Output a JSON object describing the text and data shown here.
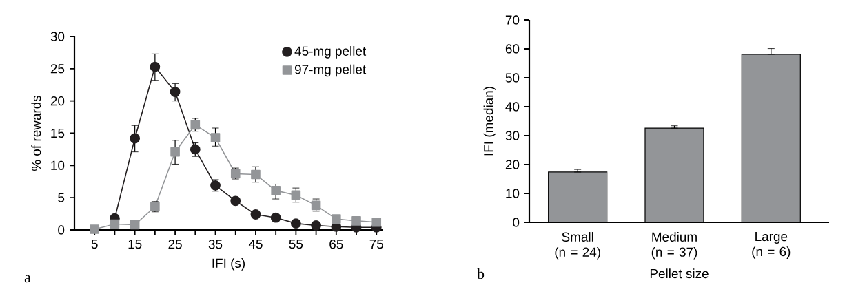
{
  "chart_data": [
    {
      "type": "line",
      "xlabel": "IFI (s)",
      "ylabel": "% of rewards",
      "annotations": [
        "a"
      ],
      "legend": "top right",
      "x": [
        5,
        10,
        15,
        20,
        25,
        30,
        35,
        40,
        45,
        50,
        55,
        60,
        65,
        70,
        75
      ],
      "xlim": [
        0,
        76.5
      ],
      "xticks": [
        5,
        {
          "value": 10,
          "label": null
        },
        15,
        {
          "value": 20,
          "label": null
        },
        25,
        {
          "value": 30,
          "label": null
        },
        35,
        {
          "value": 40,
          "label": null
        },
        45,
        {
          "value": 50,
          "label": null
        },
        55,
        {
          "value": 60,
          "label": null
        },
        65,
        {
          "value": 70,
          "label": null
        },
        75
      ],
      "ylim": [
        0,
        30
      ],
      "yticks": [
        0,
        5,
        10,
        15,
        20,
        25,
        30
      ],
      "series": [
        {
          "name": "45-mg pellet",
          "color": "#231f20",
          "marker": "circle",
          "values": [
            null,
            1.8,
            14.2,
            25.3,
            21.4,
            12.5,
            6.9,
            4.5,
            2.4,
            1.9,
            1.0,
            0.7,
            0.5,
            0.4,
            0.4
          ],
          "errors": [
            null,
            null,
            [
              12.1,
              16.2
            ],
            [
              23.2,
              27.3
            ],
            [
              20.0,
              22.7
            ],
            [
              11.4,
              13.5
            ],
            [
              6.0,
              7.8
            ],
            null,
            null,
            null,
            null,
            null,
            null,
            null,
            null
          ]
        },
        {
          "name": "97-mg pellet",
          "color": "#939598",
          "marker": "square",
          "values": [
            0.1,
            0.9,
            0.8,
            3.6,
            12.1,
            16.3,
            14.3,
            8.7,
            8.6,
            6.1,
            5.4,
            3.8,
            1.7,
            1.4,
            1.2
          ],
          "errors": [
            null,
            null,
            null,
            [
              2.8,
              4.4
            ],
            [
              10.2,
              13.9
            ],
            [
              15.3,
              17.3
            ],
            [
              13.0,
              15.8
            ],
            [
              7.9,
              9.6
            ],
            [
              7.4,
              9.8
            ],
            [
              4.8,
              7.1
            ],
            [
              4.3,
              6.5
            ],
            [
              2.9,
              4.8
            ],
            null,
            null,
            null
          ]
        }
      ]
    },
    {
      "type": "bar",
      "xlabel": "Pellet size",
      "ylabel": "IFI (median)",
      "annotations": [
        "b"
      ],
      "categories": [
        "Small (n = 24)",
        "Medium (n = 37)",
        "Large (n = 6)"
      ],
      "values": [
        17.4,
        32.6,
        58.1
      ],
      "errors": [
        [
          17.4,
          18.3
        ],
        [
          32.6,
          33.4
        ],
        [
          58.1,
          60.1
        ]
      ],
      "color": "#939598",
      "ylim": [
        0,
        70
      ],
      "yticks": [
        0,
        10,
        20,
        30,
        40,
        50,
        60,
        70
      ]
    }
  ]
}
